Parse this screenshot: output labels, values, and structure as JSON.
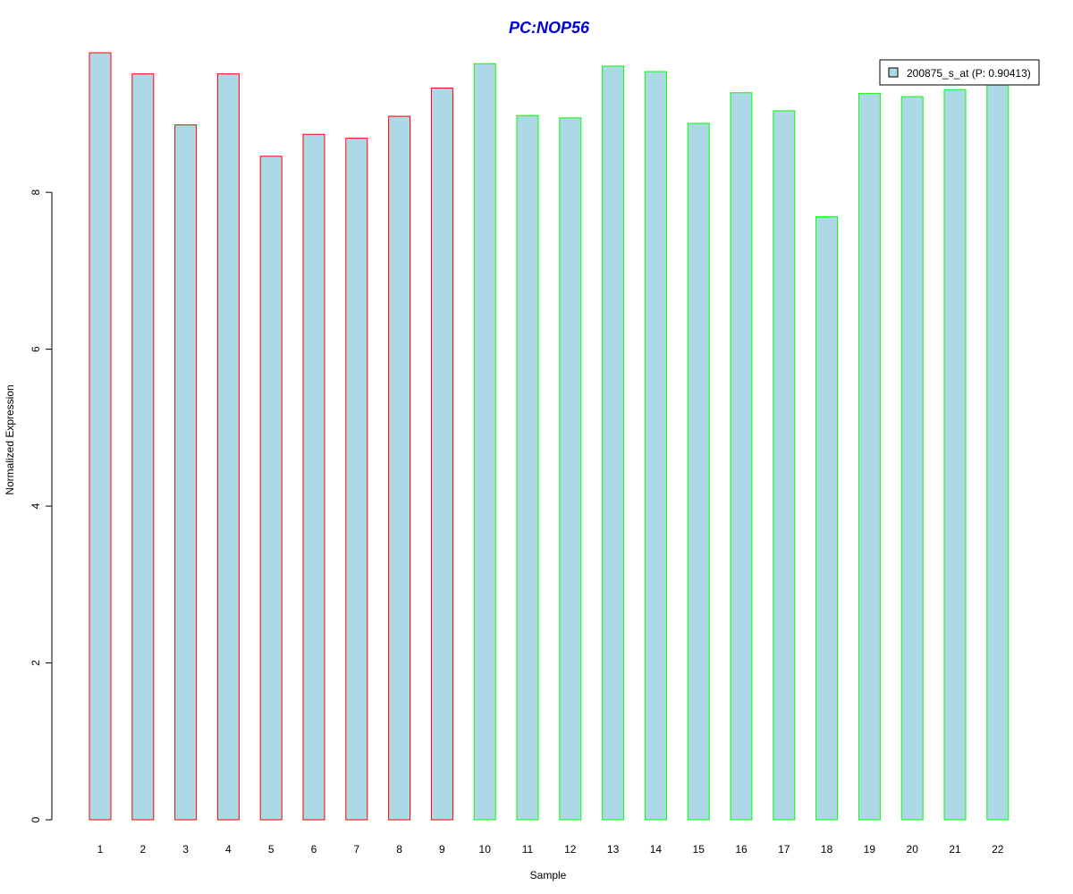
{
  "chart_data": {
    "type": "bar",
    "title": "PC:NOP56",
    "xlabel": "Sample",
    "ylabel": "Normalized Expression",
    "categories": [
      "1",
      "2",
      "3",
      "4",
      "5",
      "6",
      "7",
      "8",
      "9",
      "10",
      "11",
      "12",
      "13",
      "14",
      "15",
      "16",
      "17",
      "18",
      "19",
      "20",
      "21",
      "22"
    ],
    "series": [
      {
        "name": "200875_s_at (P: 0.90413)",
        "values": [
          9.78,
          9.51,
          8.86,
          9.51,
          8.46,
          8.74,
          8.69,
          8.97,
          9.33,
          9.64,
          8.98,
          8.95,
          9.61,
          9.54,
          8.88,
          9.27,
          9.04,
          7.69,
          9.26,
          9.22,
          9.31,
          9.47
        ]
      }
    ],
    "group_borders": [
      "#ff0000",
      "#ff0000",
      "#ff0000",
      "#ff0000",
      "#ff0000",
      "#ff0000",
      "#ff0000",
      "#ff0000",
      "#ff0000",
      "#00ff00",
      "#00ff00",
      "#00ff00",
      "#00ff00",
      "#00ff00",
      "#00ff00",
      "#00ff00",
      "#00ff00",
      "#00ff00",
      "#00ff00",
      "#00ff00",
      "#00ff00",
      "#00ff00"
    ],
    "yticks": [
      0,
      2,
      4,
      6,
      8
    ],
    "ylim": [
      0,
      9.78
    ],
    "grid": false,
    "legend_position": "top-right",
    "colors": {
      "bar_fill": "#add8e6",
      "title": "#0000cd",
      "axis": "#000000"
    }
  }
}
